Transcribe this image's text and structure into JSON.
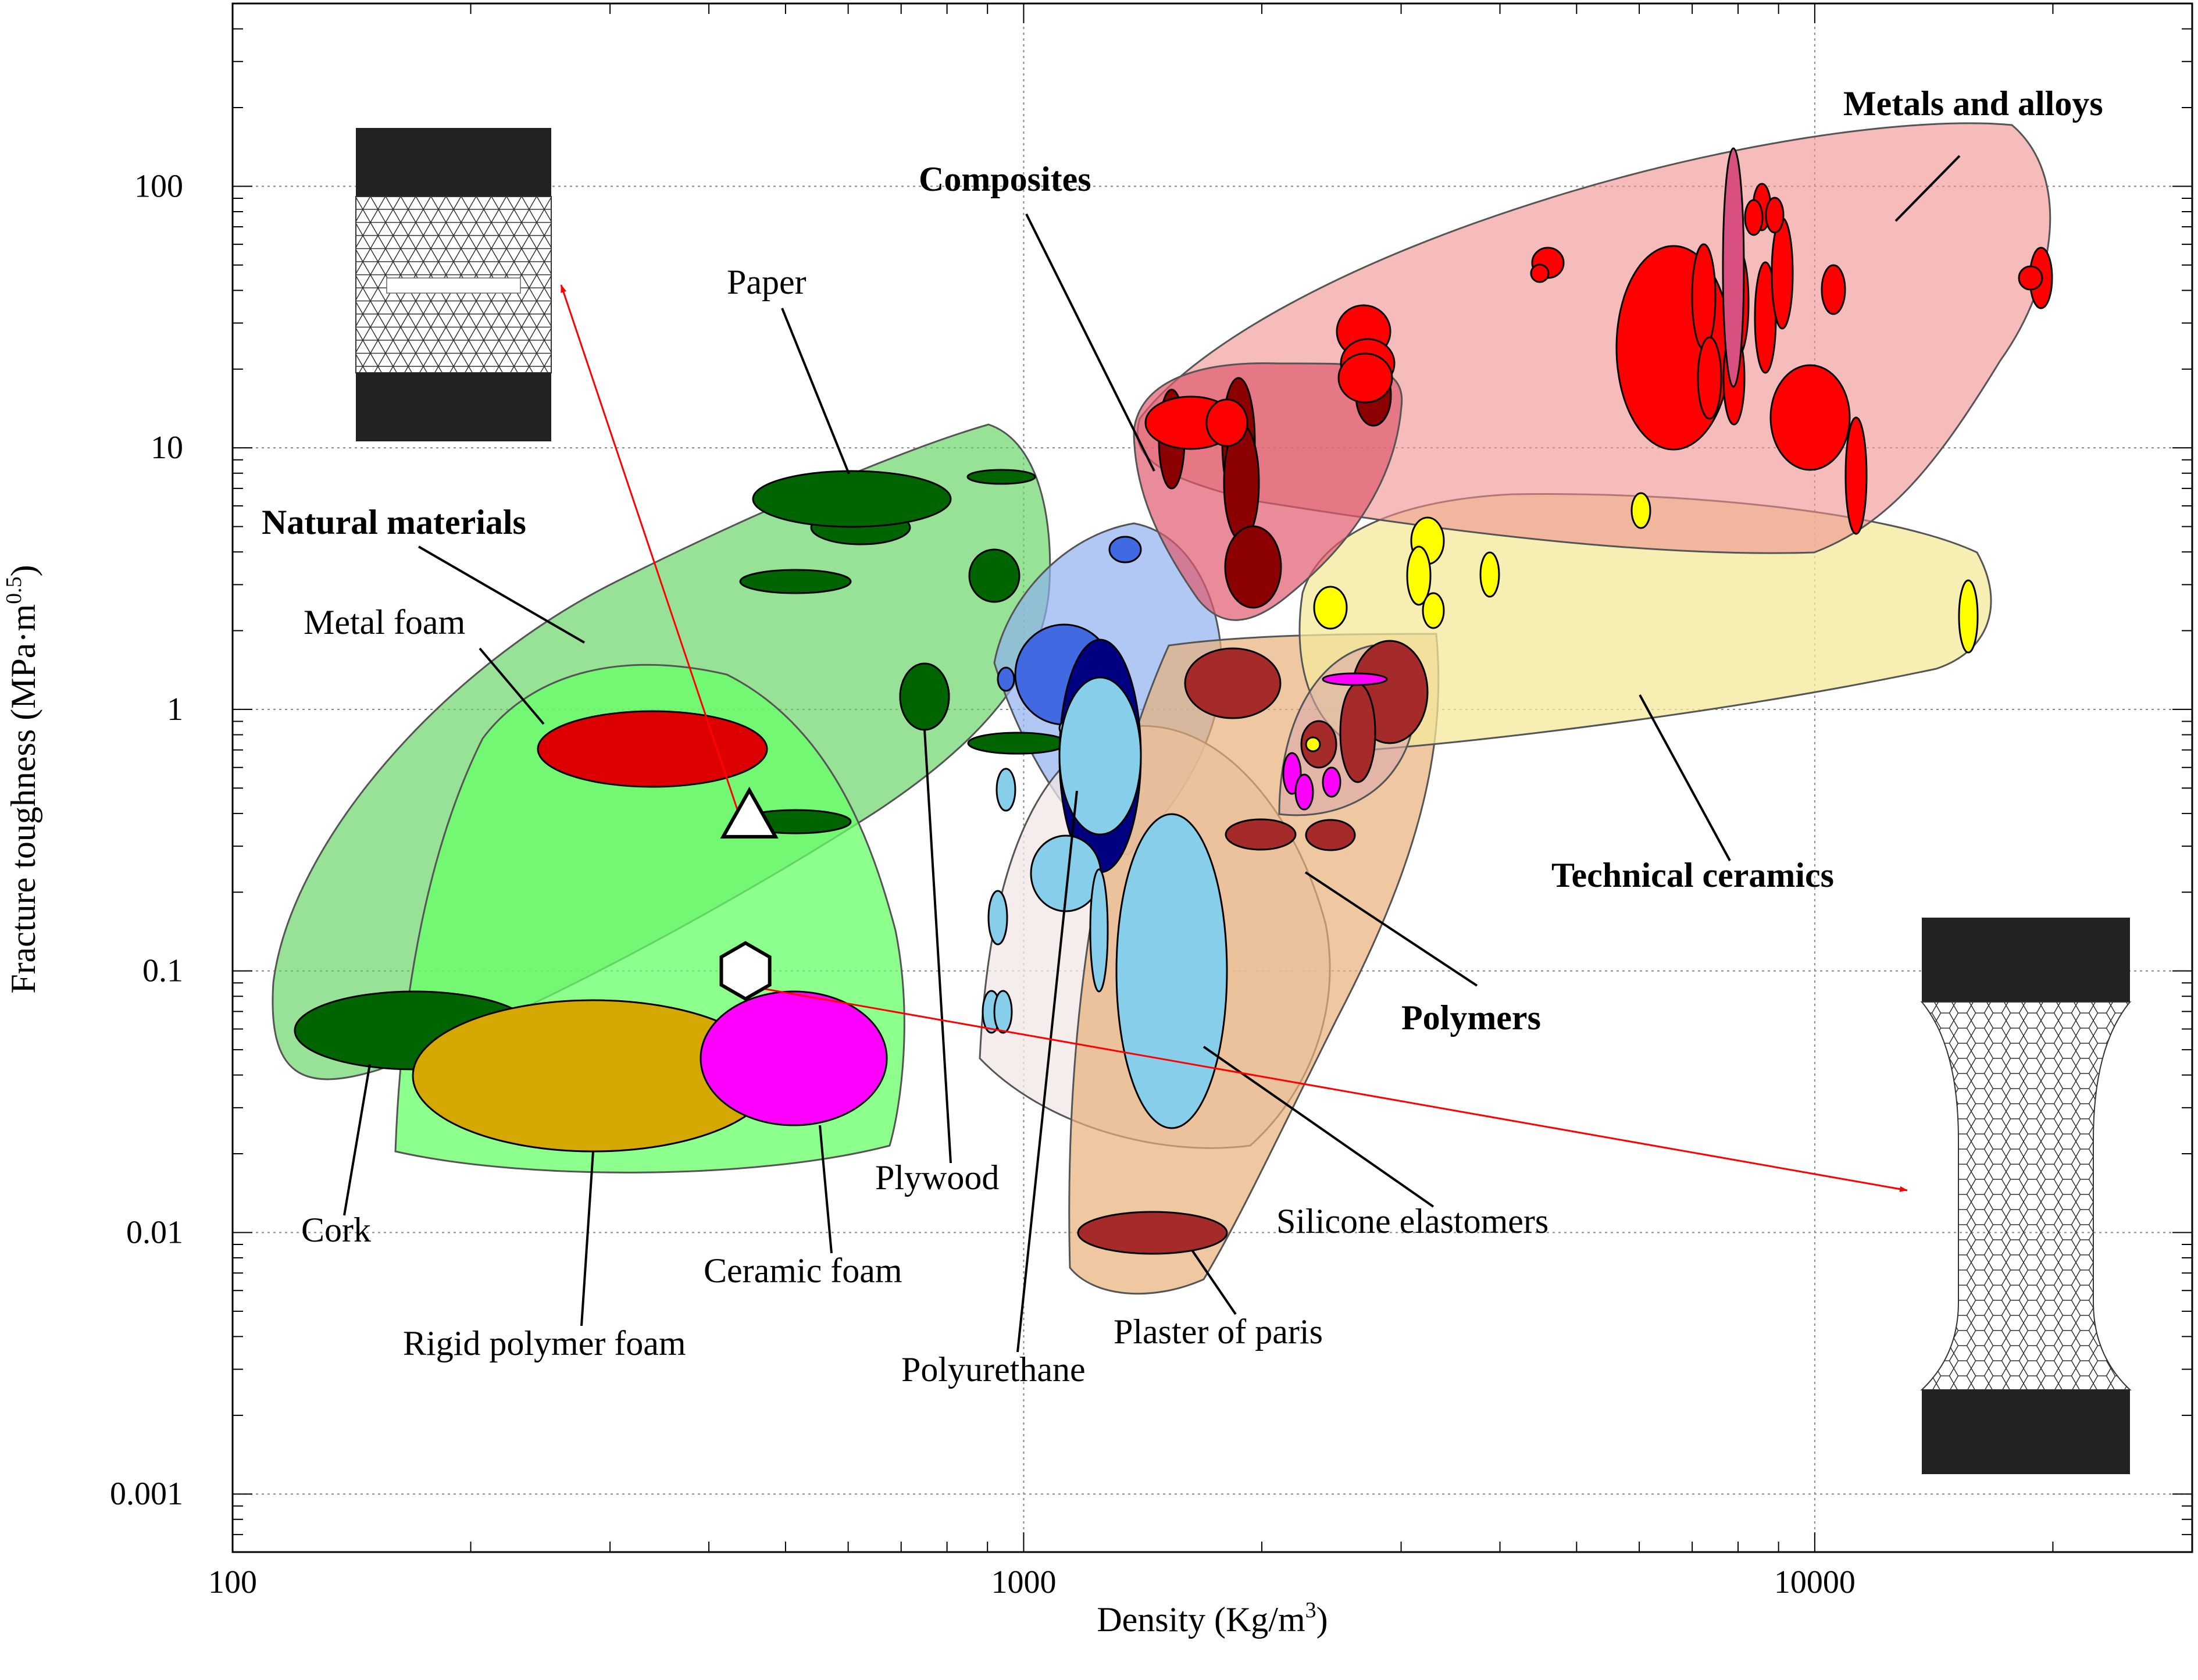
{
  "chart_data": {
    "type": "scatter",
    "xlabel": "Density (Kg/m",
    "xlabel_sup": "3",
    "xlabel_close": ")",
    "ylabel": "Fracture toughness (MPa·m",
    "ylabel_sup": "0.5",
    "ylabel_close": ")",
    "x_scale": "log",
    "y_scale": "log",
    "xlim": [
      100,
      30000
    ],
    "ylim": [
      0.0006,
      500
    ],
    "x_ticks": [
      "100",
      "1000",
      "10000"
    ],
    "y_ticks": [
      "0.001",
      "0.01",
      "0.1",
      "1",
      "10",
      "100"
    ],
    "grid": true,
    "colors": {
      "natural": "#5fd35f",
      "foam": "#66ff66",
      "polymers": "#e8b07a",
      "elastomers": "#f2e6e6",
      "composites": "#e05a6e",
      "metals": "#f08f8f",
      "ceramics": "#f3e89a",
      "blue_region": "#8fb0ee",
      "arrow": "#ff0000",
      "dark_green": "#006400",
      "light_blue": "#87ceeb"
    },
    "groups": [
      {
        "label": "Natural materials",
        "bold": true
      },
      {
        "label": "Composites",
        "bold": true
      },
      {
        "label": "Metals and alloys",
        "bold": true
      },
      {
        "label": "Technical ceramics",
        "bold": true
      },
      {
        "label": "Polymers",
        "bold": true
      }
    ],
    "annotations": [
      {
        "label": "Metal foam"
      },
      {
        "label": "Paper"
      },
      {
        "label": "Cork"
      },
      {
        "label": "Rigid polymer foam"
      },
      {
        "label": "Ceramic foam"
      },
      {
        "label": "Plywood"
      },
      {
        "label": "Polyurethane"
      },
      {
        "label": "Plaster of paris"
      },
      {
        "label": "Silicone elastomers"
      }
    ],
    "special_points": [
      {
        "shape": "triangle",
        "density": 450,
        "toughness": 0.38
      },
      {
        "shape": "hexagon",
        "density": 445,
        "toughness": 0.1
      }
    ],
    "materials": [
      {
        "name": "Metal foam",
        "density": 350,
        "toughness": 0.85,
        "color": "#dd0000"
      },
      {
        "name": "Cork",
        "density": 175,
        "toughness": 0.07,
        "color": "#006400"
      },
      {
        "name": "Rigid polymer foam",
        "density": 300,
        "toughness": 0.05,
        "color": "#d4a800"
      },
      {
        "name": "Ceramic foam",
        "density": 510,
        "toughness": 0.055,
        "color": "#ff00ff"
      },
      {
        "name": "Paper",
        "density": 690,
        "toughness": 7.5,
        "color": "#006400"
      },
      {
        "name": "Plywood",
        "density": 750,
        "toughness": 1.3,
        "color": "#006400"
      },
      {
        "name": "Polyurethane",
        "density": 1300,
        "toughness": 0.12,
        "color": "#87ceeb"
      },
      {
        "name": "Plaster of paris",
        "density": 1500,
        "toughness": 0.012,
        "color": "#a52a2a"
      },
      {
        "name": "Silicone elastomers",
        "density": 1500,
        "toughness": 0.12,
        "color": "#87ceeb"
      }
    ]
  }
}
